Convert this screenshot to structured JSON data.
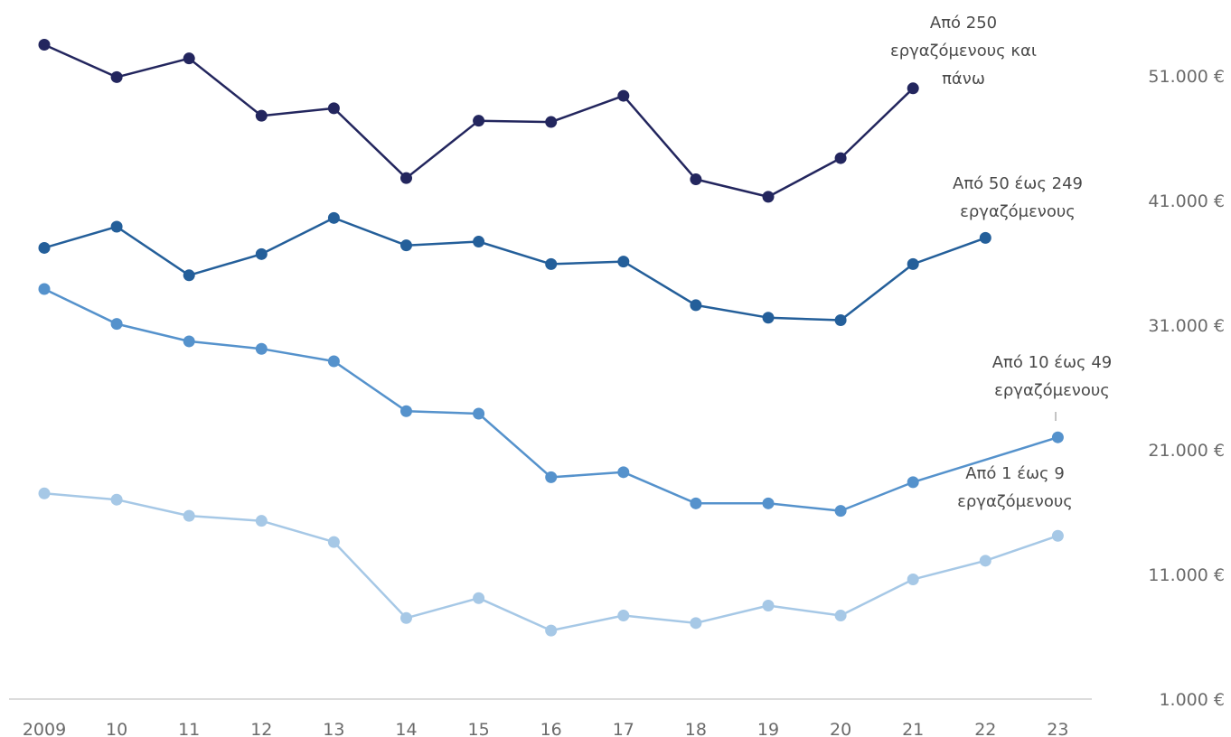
{
  "chart_data": {
    "type": "line",
    "x": [
      "2009",
      "10",
      "11",
      "12",
      "13",
      "14",
      "15",
      "16",
      "17",
      "18",
      "19",
      "20",
      "21",
      "22",
      "23"
    ],
    "y_ticks": [
      "1.000 €",
      "11.000 €",
      "21.000 €",
      "31.000 €",
      "41.000 €",
      "51.000 €"
    ],
    "y_tick_values": [
      1000,
      11000,
      21000,
      31000,
      41000,
      51000
    ],
    "ylim": [
      1000,
      56600
    ],
    "grid": false,
    "y_axis_side": "right",
    "series": [
      {
        "name": "Από 250 εργαζόμενους και πάνω",
        "label_lines": [
          "Από 250",
          "εργαζόμενους και",
          "πάνω"
        ],
        "color": "#23265e",
        "values": [
          53500,
          50900,
          52400,
          47800,
          48400,
          42800,
          47400,
          47300,
          49400,
          42700,
          41300,
          44400,
          50000,
          null,
          null
        ]
      },
      {
        "name": "Από 50 έως 249 εργαζόμενους",
        "label_lines": [
          "Από 50 έως 249",
          "εργαζόμενους"
        ],
        "color": "#245f9a",
        "values": [
          37200,
          38900,
          35000,
          36700,
          39600,
          37400,
          37700,
          35900,
          36100,
          32600,
          31600,
          31400,
          35900,
          38000,
          null
        ]
      },
      {
        "name": "Από 10 έως 49 εργαζόμενους",
        "label_lines": [
          "Από 10 έως 49",
          "εργαζόμενους"
        ],
        "color": "#5592cc",
        "values": [
          33900,
          31100,
          29700,
          29100,
          28100,
          24100,
          23900,
          18800,
          19200,
          16700,
          16700,
          16100,
          18400,
          null,
          22000
        ]
      },
      {
        "name": "Από 1 έως 9 εργαζόμενους",
        "label_lines": [
          "Από 1 έως 9",
          "εργαζόμενους"
        ],
        "color": "#a6c8e6",
        "values": [
          17500,
          17000,
          15700,
          15300,
          13600,
          7500,
          9100,
          6500,
          7700,
          7100,
          8500,
          7700,
          10600,
          12100,
          14100
        ]
      }
    ]
  }
}
